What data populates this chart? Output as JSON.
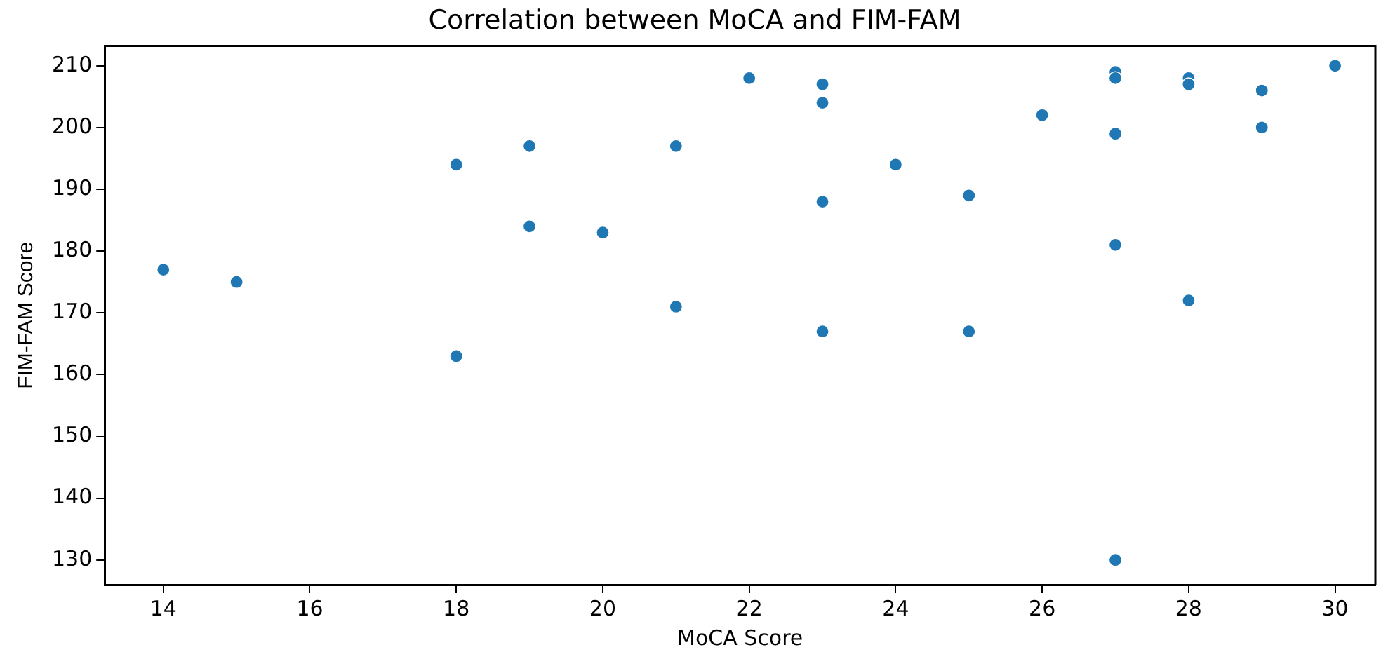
{
  "chart_data": {
    "type": "scatter",
    "title": "Correlation between MoCA and FIM-FAM",
    "xlabel": "MoCA Score",
    "ylabel": "FIM-FAM Score",
    "x": [
      14,
      15,
      18,
      18,
      19,
      19,
      20,
      21,
      21,
      22,
      23,
      23,
      23,
      23,
      24,
      25,
      25,
      26,
      27,
      27,
      27,
      27,
      27,
      28,
      28,
      28,
      29,
      29,
      30
    ],
    "series": [
      {
        "color": "#1f77b4",
        "values": [
          177,
          175,
          194,
          163,
          197,
          184,
          183,
          197,
          171,
          208,
          207,
          204,
          188,
          167,
          194,
          189,
          167,
          202,
          209,
          208,
          199,
          181,
          130,
          208,
          207,
          172,
          206,
          200,
          210
        ]
      }
    ],
    "xlim": [
      13.2,
      30.55
    ],
    "xticks": [
      14,
      16,
      18,
      20,
      22,
      24,
      26,
      28,
      30
    ],
    "ylim": [
      126,
      213.2
    ],
    "yticks": [
      130,
      140,
      150,
      160,
      170,
      180,
      190,
      200,
      210
    ],
    "marker": "circle",
    "grid": false,
    "legend": false
  }
}
